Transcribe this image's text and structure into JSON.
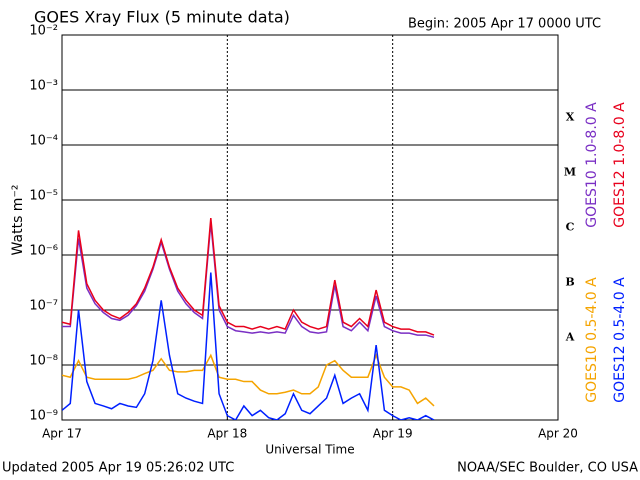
{
  "chart_data": {
    "type": "line",
    "title": "GOES Xray Flux (5 minute data)",
    "subtitle": "Begin:  2005 Apr 17 0000 UTC",
    "x_label": "Universal Time",
    "y_label": "Watts m⁻²",
    "footer_left": "Updated 2005 Apr 19 05:26:02 UTC",
    "footer_right": "NOAA/SEC Boulder, CO USA",
    "flare_classes": [
      "A",
      "B",
      "C",
      "M",
      "X"
    ],
    "log_y": true,
    "grid": true,
    "xlim": [
      0,
      3
    ],
    "xticks": [
      {
        "value": 0,
        "label": "Apr 17"
      },
      {
        "value": 1,
        "label": "Apr 18"
      },
      {
        "value": 2,
        "label": "Apr 19"
      },
      {
        "value": 3,
        "label": "Apr 20"
      }
    ],
    "ylim": [
      1e-09,
      0.01
    ],
    "yticks": [
      {
        "value": 1e-09,
        "label": "10⁻⁹"
      },
      {
        "value": 1e-08,
        "label": "10⁻⁸"
      },
      {
        "value": 1e-07,
        "label": "10⁻⁷"
      },
      {
        "value": 1e-06,
        "label": "10⁻⁶"
      },
      {
        "value": 1e-05,
        "label": "10⁻⁵"
      },
      {
        "value": 0.0001,
        "label": "10⁻⁴"
      },
      {
        "value": 0.001,
        "label": "10⁻³"
      },
      {
        "value": 0.01,
        "label": "10⁻²"
      }
    ],
    "x": [
      0,
      0.05,
      0.1,
      0.15,
      0.2,
      0.25,
      0.3,
      0.35,
      0.4,
      0.45,
      0.5,
      0.55,
      0.6,
      0.65,
      0.7,
      0.75,
      0.8,
      0.85,
      0.9,
      0.95,
      1,
      1.05,
      1.1,
      1.15,
      1.2,
      1.25,
      1.3,
      1.35,
      1.4,
      1.45,
      1.5,
      1.55,
      1.6,
      1.65,
      1.7,
      1.75,
      1.8,
      1.85,
      1.9,
      1.95,
      2,
      2.05,
      2.1,
      2.15,
      2.2,
      2.25
    ],
    "series": [
      {
        "name": "GOES10 1.0-8.0 A",
        "color": "#7a2fc4",
        "values": [
          5e-08,
          5e-08,
          2e-06,
          2.5e-07,
          1.3e-07,
          9e-08,
          7e-08,
          6.5e-08,
          8e-08,
          1.2e-07,
          2.2e-07,
          5.5e-07,
          1.7e-06,
          5.5e-07,
          2.2e-07,
          1.3e-07,
          9e-08,
          7e-08,
          3.8e-06,
          1e-07,
          5e-08,
          4.2e-08,
          4e-08,
          3.8e-08,
          4e-08,
          3.8e-08,
          4e-08,
          3.8e-08,
          8e-08,
          5e-08,
          4e-08,
          3.8e-08,
          4e-08,
          2.8e-07,
          5e-08,
          4.2e-08,
          6e-08,
          4.2e-08,
          1.8e-07,
          5e-08,
          4.2e-08,
          3.8e-08,
          3.8e-08,
          3.5e-08,
          3.5e-08,
          3.2e-08
        ]
      },
      {
        "name": "GOES12 1.0-8.0 A",
        "color": "#e8001c",
        "values": [
          6e-08,
          5.5e-08,
          2.8e-06,
          3e-07,
          1.5e-07,
          1e-07,
          8e-08,
          7e-08,
          9e-08,
          1.3e-07,
          2.5e-07,
          6e-07,
          1.9e-06,
          6e-07,
          2.5e-07,
          1.5e-07,
          1e-07,
          8e-08,
          4.7e-06,
          1.2e-07,
          6e-08,
          5e-08,
          5e-08,
          4.5e-08,
          5e-08,
          4.5e-08,
          5e-08,
          4.5e-08,
          1e-07,
          6e-08,
          5e-08,
          4.5e-08,
          5e-08,
          3.5e-07,
          6e-08,
          5e-08,
          7e-08,
          5e-08,
          2.3e-07,
          6e-08,
          5e-08,
          4.5e-08,
          4.5e-08,
          4e-08,
          4e-08,
          3.5e-08
        ]
      },
      {
        "name": "GOES10 0.5-4.0 A",
        "color": "#f5a400",
        "values": [
          6.5e-09,
          6e-09,
          1.2e-08,
          6e-09,
          5.5e-09,
          5.5e-09,
          5.5e-09,
          5.5e-09,
          5.5e-09,
          6e-09,
          7e-09,
          8e-09,
          1.3e-08,
          8e-09,
          7.5e-09,
          7.5e-09,
          8e-09,
          8e-09,
          1.5e-08,
          6e-09,
          5.5e-09,
          5.5e-09,
          5e-09,
          5e-09,
          3.5e-09,
          3e-09,
          3e-09,
          3.2e-09,
          3.5e-09,
          3e-09,
          3e-09,
          4e-09,
          1e-08,
          1.2e-08,
          8e-09,
          6e-09,
          6e-09,
          6e-09,
          1.5e-08,
          6e-09,
          4e-09,
          4e-09,
          3.5e-09,
          2e-09,
          2.5e-09,
          1.8e-09
        ]
      },
      {
        "name": "GOES12 0.5-4.0 A",
        "color": "#0020ff",
        "values": [
          1.5e-09,
          2e-09,
          1e-07,
          5e-09,
          2e-09,
          1.8e-09,
          1.6e-09,
          2e-09,
          1.8e-09,
          1.7e-09,
          3e-09,
          1.2e-08,
          1.5e-07,
          1.5e-08,
          3e-09,
          2.5e-09,
          2.2e-09,
          2e-09,
          4.8e-07,
          3e-09,
          1.2e-09,
          1e-09,
          1.8e-09,
          1.2e-09,
          1.5e-09,
          1.1e-09,
          1e-09,
          1.3e-09,
          3e-09,
          1.5e-09,
          1.3e-09,
          1.8e-09,
          2.5e-09,
          6.5e-09,
          2e-09,
          2.5e-09,
          3e-09,
          1.5e-09,
          2.3e-08,
          1.5e-09,
          1.2e-09,
          1e-09,
          1.1e-09,
          1e-09,
          1.2e-09,
          1e-09
        ]
      }
    ]
  }
}
